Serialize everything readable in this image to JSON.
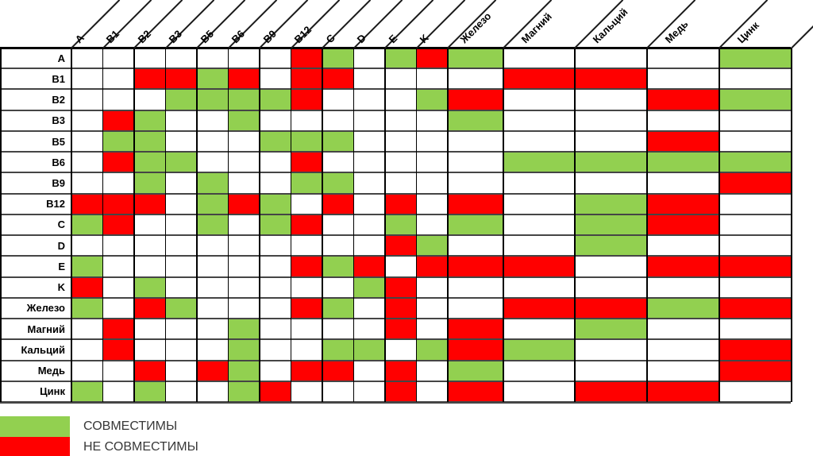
{
  "colors": {
    "compatible": "#92D050",
    "incompatible": "#FF0000",
    "neutral": "#FFFFFF"
  },
  "legend": [
    {
      "status": "compatible",
      "label": "СОВМЕСТИМЫ",
      "color": "#92D050"
    },
    {
      "status": "incompatible",
      "label": "НЕ СОВМЕСТИМЫ",
      "color": "#FF0000"
    }
  ],
  "chart_data": {
    "type": "heatmap",
    "title": "",
    "legend_position": "bottom-left",
    "cell_codes": {
      "G": "СОВМЕСТИМЫ",
      "R": "НЕ СОВМЕСТИМЫ",
      "": "нет отметки"
    },
    "columns": [
      "A",
      "B1",
      "B2",
      "B3",
      "B5",
      "B6",
      "B9",
      "B12",
      "C",
      "D",
      "E",
      "K",
      "Железо",
      "Магний",
      "Кальций",
      "Медь",
      "Цинк"
    ],
    "rows": [
      "A",
      "B1",
      "B2",
      "B3",
      "B5",
      "B6",
      "B9",
      "B12",
      "C",
      "D",
      "E",
      "K",
      "Железо",
      "Магний",
      "Кальций",
      "Медь",
      "Цинк"
    ],
    "matrix": [
      [
        "",
        "",
        "",
        "",
        "",
        "",
        "",
        "R",
        "G",
        "",
        "G",
        "R",
        "G",
        "",
        "",
        "",
        "G"
      ],
      [
        "",
        "",
        "R",
        "R",
        "G",
        "R",
        "",
        "R",
        "R",
        "",
        "",
        "",
        "",
        "R",
        "R",
        "",
        ""
      ],
      [
        "",
        "",
        "",
        "G",
        "G",
        "G",
        "G",
        "R",
        "",
        "",
        "",
        "G",
        "R",
        "",
        "",
        "R",
        "G"
      ],
      [
        "",
        "R",
        "G",
        "",
        "",
        "G",
        "",
        "",
        "",
        "",
        "",
        "",
        "G",
        "",
        "",
        "",
        ""
      ],
      [
        "",
        "G",
        "G",
        "",
        "",
        "",
        "G",
        "G",
        "G",
        "",
        "",
        "",
        "",
        "",
        "",
        "R",
        ""
      ],
      [
        "",
        "R",
        "G",
        "G",
        "",
        "",
        "",
        "R",
        "",
        "",
        "",
        "",
        "",
        "G",
        "G",
        "G",
        "G"
      ],
      [
        "",
        "",
        "G",
        "",
        "G",
        "",
        "",
        "G",
        "G",
        "",
        "",
        "",
        "",
        "",
        "",
        "",
        "R"
      ],
      [
        "R",
        "R",
        "R",
        "",
        "G",
        "R",
        "G",
        "",
        "R",
        "",
        "R",
        "",
        "R",
        "",
        "G",
        "R",
        ""
      ],
      [
        "G",
        "R",
        "",
        "",
        "G",
        "",
        "G",
        "R",
        "",
        "",
        "G",
        "",
        "G",
        "",
        "G",
        "R",
        ""
      ],
      [
        "",
        "",
        "",
        "",
        "",
        "",
        "",
        "",
        "",
        "",
        "R",
        "G",
        "",
        "",
        "G",
        "",
        ""
      ],
      [
        "G",
        "",
        "",
        "",
        "",
        "",
        "",
        "R",
        "G",
        "R",
        "",
        "R",
        "R",
        "R",
        "",
        "R",
        "R"
      ],
      [
        "R",
        "",
        "G",
        "",
        "",
        "",
        "",
        "",
        "",
        "G",
        "R",
        "",
        "",
        "",
        "",
        "",
        ""
      ],
      [
        "G",
        "",
        "R",
        "G",
        "",
        "",
        "",
        "R",
        "G",
        "",
        "R",
        "",
        "",
        "R",
        "R",
        "G",
        "R"
      ],
      [
        "",
        "R",
        "",
        "",
        "",
        "G",
        "",
        "",
        "",
        "",
        "R",
        "",
        "R",
        "",
        "G",
        "",
        ""
      ],
      [
        "",
        "R",
        "",
        "",
        "",
        "G",
        "",
        "",
        "G",
        "G",
        "",
        "G",
        "R",
        "G",
        "",
        "",
        "R"
      ],
      [
        "",
        "",
        "R",
        "",
        "R",
        "G",
        "",
        "R",
        "R",
        "",
        "R",
        "",
        "G",
        "",
        "",
        "",
        "R"
      ],
      [
        "G",
        "",
        "G",
        "",
        "",
        "G",
        "R",
        "",
        "",
        "",
        "R",
        "",
        "R",
        "",
        "R",
        "R",
        ""
      ]
    ]
  }
}
